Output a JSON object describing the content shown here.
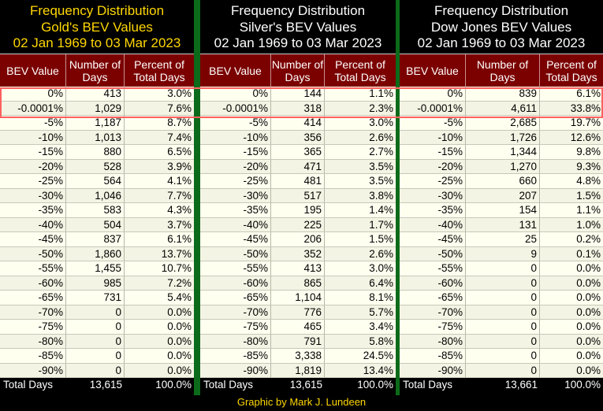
{
  "chart_data": [
    {
      "type": "table",
      "title_lines": [
        "Frequency Distribution",
        "Gold's BEV Values",
        "02 Jan 1969 to 03 Mar 2023"
      ],
      "title_color": "#ffd700",
      "columns": [
        "BEV Value",
        "Number of Days",
        "Percent of Total Days"
      ],
      "rows": [
        [
          "0%",
          "413",
          "3.0%"
        ],
        [
          "-0.0001%",
          "1,029",
          "7.6%"
        ],
        [
          "-5%",
          "1,187",
          "8.7%"
        ],
        [
          "-10%",
          "1,013",
          "7.4%"
        ],
        [
          "-15%",
          "880",
          "6.5%"
        ],
        [
          "-20%",
          "528",
          "3.9%"
        ],
        [
          "-25%",
          "564",
          "4.1%"
        ],
        [
          "-30%",
          "1,046",
          "7.7%"
        ],
        [
          "-35%",
          "583",
          "4.3%"
        ],
        [
          "-40%",
          "504",
          "3.7%"
        ],
        [
          "-45%",
          "837",
          "6.1%"
        ],
        [
          "-50%",
          "1,860",
          "13.7%"
        ],
        [
          "-55%",
          "1,455",
          "10.7%"
        ],
        [
          "-60%",
          "985",
          "7.2%"
        ],
        [
          "-65%",
          "731",
          "5.4%"
        ],
        [
          "-70%",
          "0",
          "0.0%"
        ],
        [
          "-75%",
          "0",
          "0.0%"
        ],
        [
          "-80%",
          "0",
          "0.0%"
        ],
        [
          "-85%",
          "0",
          "0.0%"
        ],
        [
          "-90%",
          "0",
          "0.0%"
        ]
      ],
      "total": [
        "Total Days",
        "13,615",
        "100.0%"
      ]
    },
    {
      "type": "table",
      "title_lines": [
        "Frequency Distribution",
        "Silver's BEV Values",
        "02 Jan 1969 to 03 Mar 2023"
      ],
      "title_color": "#ffffff",
      "columns": [
        "BEV Value",
        "Number of Days",
        "Percent of Total Days"
      ],
      "rows": [
        [
          "0%",
          "144",
          "1.1%"
        ],
        [
          "-0.0001%",
          "318",
          "2.3%"
        ],
        [
          "-5%",
          "414",
          "3.0%"
        ],
        [
          "-10%",
          "356",
          "2.6%"
        ],
        [
          "-15%",
          "365",
          "2.7%"
        ],
        [
          "-20%",
          "471",
          "3.5%"
        ],
        [
          "-25%",
          "481",
          "3.5%"
        ],
        [
          "-30%",
          "517",
          "3.8%"
        ],
        [
          "-35%",
          "195",
          "1.4%"
        ],
        [
          "-40%",
          "225",
          "1.7%"
        ],
        [
          "-45%",
          "206",
          "1.5%"
        ],
        [
          "-50%",
          "352",
          "2.6%"
        ],
        [
          "-55%",
          "413",
          "3.0%"
        ],
        [
          "-60%",
          "865",
          "6.4%"
        ],
        [
          "-65%",
          "1,104",
          "8.1%"
        ],
        [
          "-70%",
          "776",
          "5.7%"
        ],
        [
          "-75%",
          "465",
          "3.4%"
        ],
        [
          "-80%",
          "791",
          "5.8%"
        ],
        [
          "-85%",
          "3,338",
          "24.5%"
        ],
        [
          "-90%",
          "1,819",
          "13.4%"
        ]
      ],
      "total": [
        "Total Days",
        "13,615",
        "100.0%"
      ]
    },
    {
      "type": "table",
      "title_lines": [
        "Frequency Distribution",
        "Dow Jones BEV Values",
        "02 Jan 1969 to 03 Mar 2023"
      ],
      "title_color": "#ffffff",
      "columns": [
        "BEV Value",
        "Number of Days",
        "Percent of Total Days"
      ],
      "rows": [
        [
          "0%",
          "839",
          "6.1%"
        ],
        [
          "-0.0001%",
          "4,611",
          "33.8%"
        ],
        [
          "-5%",
          "2,685",
          "19.7%"
        ],
        [
          "-10%",
          "1,726",
          "12.6%"
        ],
        [
          "-15%",
          "1,344",
          "9.8%"
        ],
        [
          "-20%",
          "1,270",
          "9.3%"
        ],
        [
          "-25%",
          "660",
          "4.8%"
        ],
        [
          "-30%",
          "207",
          "1.5%"
        ],
        [
          "-35%",
          "154",
          "1.1%"
        ],
        [
          "-40%",
          "131",
          "1.0%"
        ],
        [
          "-45%",
          "25",
          "0.2%"
        ],
        [
          "-50%",
          "9",
          "0.1%"
        ],
        [
          "-55%",
          "0",
          "0.0%"
        ],
        [
          "-60%",
          "0",
          "0.0%"
        ],
        [
          "-65%",
          "0",
          "0.0%"
        ],
        [
          "-70%",
          "0",
          "0.0%"
        ],
        [
          "-75%",
          "0",
          "0.0%"
        ],
        [
          "-80%",
          "0",
          "0.0%"
        ],
        [
          "-85%",
          "0",
          "0.0%"
        ],
        [
          "-90%",
          "0",
          "0.0%"
        ]
      ],
      "total": [
        "Total Days",
        "13,661",
        "100.0%"
      ]
    }
  ],
  "header_colors": {
    "background": "#7b0000",
    "separator": "#0b6b1a",
    "highlight": "#ff6060"
  },
  "footer": {
    "credit": "Graphic by Mark J. Lundeen"
  }
}
